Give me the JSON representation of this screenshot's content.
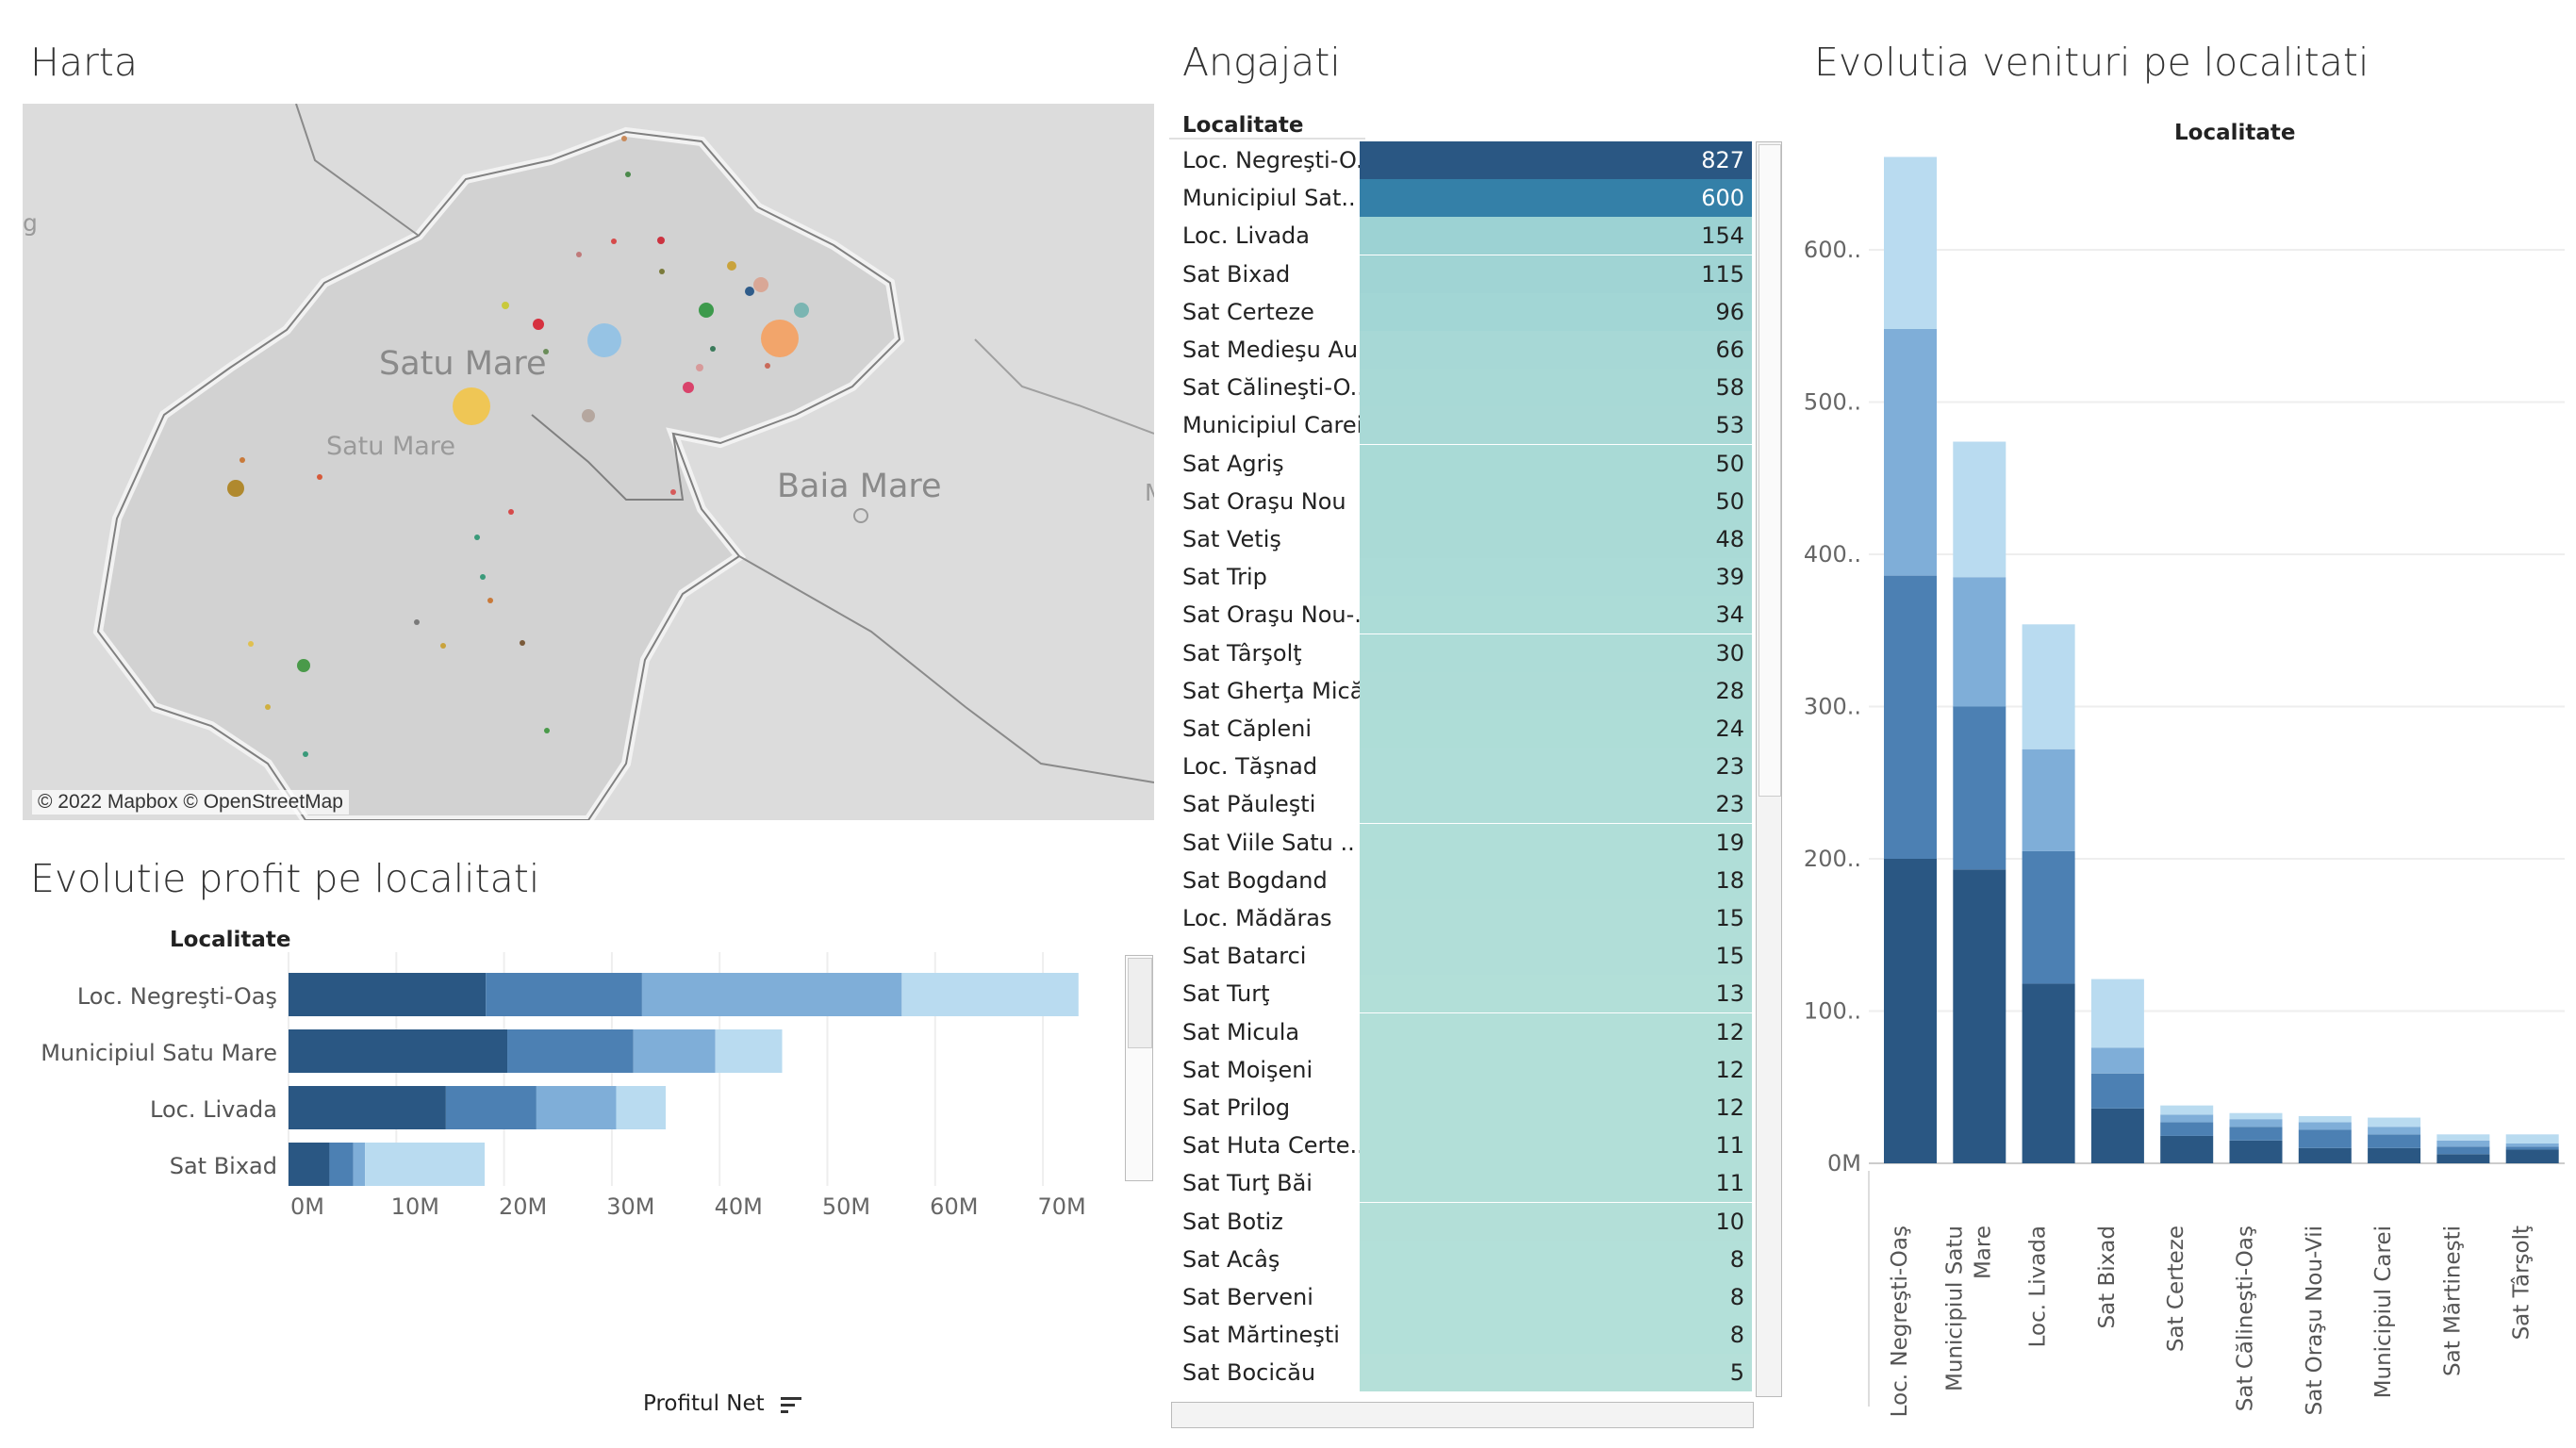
{
  "map": {
    "title": "Harta",
    "labels": [
      "Satu Mare",
      "Satu Mare",
      "Baia Mare",
      "g",
      "M"
    ],
    "copyright": "© 2022 Mapbox © OpenStreetMap"
  },
  "angajati": {
    "title": "Angajati",
    "header": "Localitate",
    "rows": [
      {
        "name": "Loc. Negreşti-O..",
        "value": 827
      },
      {
        "name": "Municipiul Sat..",
        "value": 600
      },
      {
        "name": "Loc. Livada",
        "value": 154
      },
      {
        "name": "Sat Bixad",
        "value": 115
      },
      {
        "name": "Sat Certeze",
        "value": 96
      },
      {
        "name": "Sat Medieşu Au..",
        "value": 66
      },
      {
        "name": "Sat Călineşti-O..",
        "value": 58
      },
      {
        "name": "Municipiul Carei",
        "value": 53
      },
      {
        "name": "Sat Agriş",
        "value": 50
      },
      {
        "name": "Sat Oraşu Nou",
        "value": 50
      },
      {
        "name": "Sat Vetiş",
        "value": 48
      },
      {
        "name": "Sat Trip",
        "value": 39
      },
      {
        "name": "Sat Oraşu Nou-..",
        "value": 34
      },
      {
        "name": "Sat Târşolţ",
        "value": 30
      },
      {
        "name": "Sat Gherţa Mică",
        "value": 28
      },
      {
        "name": "Sat Căpleni",
        "value": 24
      },
      {
        "name": "Loc. Tăşnad",
        "value": 23
      },
      {
        "name": "Sat Păuleşti",
        "value": 23
      },
      {
        "name": "Sat Viile Satu ..",
        "value": 19
      },
      {
        "name": "Sat Bogdand",
        "value": 18
      },
      {
        "name": "Loc. Mădăras",
        "value": 15
      },
      {
        "name": "Sat Batarci",
        "value": 15
      },
      {
        "name": "Sat Turţ",
        "value": 13
      },
      {
        "name": "Sat Micula",
        "value": 12
      },
      {
        "name": "Sat Moişeni",
        "value": 12
      },
      {
        "name": "Sat Prilog",
        "value": 12
      },
      {
        "name": "Sat Huta Certe..",
        "value": 11
      },
      {
        "name": "Sat Turţ Băi",
        "value": 11
      },
      {
        "name": "Sat Botiz",
        "value": 10
      },
      {
        "name": "Sat Acâş",
        "value": 8
      },
      {
        "name": "Sat Berveni",
        "value": 8
      },
      {
        "name": "Sat Mărtineşti",
        "value": 8
      },
      {
        "name": "Sat Bocicău",
        "value": 5
      }
    ]
  },
  "profit": {
    "title": "Evolutie profit pe localitati",
    "header": "Localitate",
    "footer": "Profitul Net"
  },
  "venituri": {
    "title": "Evolutia venituri pe localitati",
    "header": "Localitate"
  },
  "colors": {
    "dark": "#2a5783",
    "mid": "#4c80b3",
    "light": "#7faed8",
    "pale": "#b9dbf0",
    "teal_low": "#b9e3da",
    "teal_high": "#2a5783"
  },
  "chart_data": [
    {
      "type": "bar",
      "orientation": "horizontal",
      "stacked": true,
      "categories": [
        "Loc. Negreşti-Oaş",
        "Municipiul Satu Mare",
        "Loc. Livada",
        "Sat Bixad"
      ],
      "series": [
        {
          "values": [
            18.3,
            20.3,
            14.6,
            3.8
          ]
        },
        {
          "values": [
            14.5,
            11.7,
            8.4,
            2.2
          ]
        },
        {
          "values": [
            24.1,
            7.6,
            7.4,
            1.1
          ]
        },
        {
          "values": [
            16.4,
            6.2,
            4.6,
            11.1
          ]
        }
      ],
      "xticks": [
        "0M",
        "10M",
        "20M",
        "30M",
        "40M",
        "50M",
        "60M",
        "70M"
      ],
      "xlim": [
        0,
        78
      ],
      "xlabel": "Profitul Net",
      "ylabel": "Localitate"
    },
    {
      "type": "bar",
      "stacked": true,
      "categories": [
        "Loc. Negreşti-Oaş",
        "Municipiul Satu Mare",
        "Loc. Livada",
        "Sat Bixad",
        "Sat Certeze",
        "Sat Călineşti-Oaş",
        "Sat Oraşu Nou-Vii",
        "Municipiul Carei",
        "Sat Mărtineşti",
        "Sat Târşolţ"
      ],
      "tick_labels": [
        [
          "Loc. Negreşti-Oaş"
        ],
        [
          "Municipiul Satu",
          "Mare"
        ],
        [
          "Loc. Livada"
        ],
        [
          "Sat Bixad"
        ],
        [
          "Sat Certeze"
        ],
        [
          "Sat Călineşti-Oaş"
        ],
        [
          "Sat Oraşu Nou-Vii"
        ],
        [
          "Municipiul Carei"
        ],
        [
          "Sat Mărtineşti"
        ],
        [
          "Sat Târşolţ"
        ]
      ],
      "series": [
        {
          "values": [
            200,
            193,
            118,
            36,
            18,
            15,
            10,
            10,
            6,
            9
          ]
        },
        {
          "values": [
            186,
            107,
            87,
            23,
            9,
            9,
            12,
            9,
            5,
            2
          ]
        },
        {
          "values": [
            162,
            85,
            67,
            17,
            5,
            5,
            5,
            5,
            4,
            2
          ]
        },
        {
          "values": [
            113,
            89,
            82,
            45,
            6,
            4,
            4,
            6,
            4,
            6
          ]
        }
      ],
      "yticks": [
        "0M",
        "100..",
        "200..",
        "300..",
        "400..",
        "500..",
        "600.."
      ],
      "ylim": [
        0,
        700
      ],
      "ylabel": "",
      "xlabel": "Localitate"
    }
  ]
}
